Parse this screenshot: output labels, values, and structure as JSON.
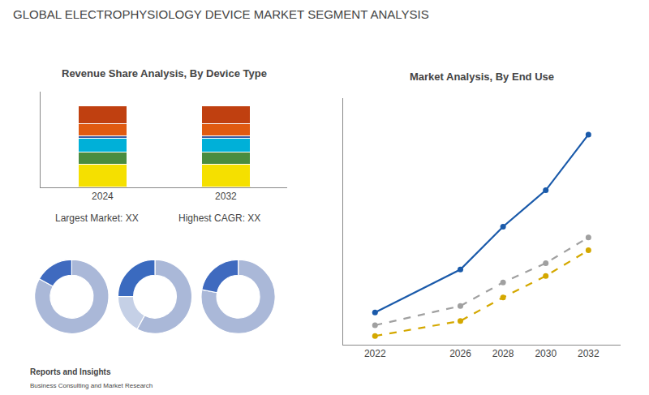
{
  "title": "GLOBAL ELECTROPHYSIOLOGY DEVICE MARKET SEGMENT ANALYSIS",
  "annotations": [
    "Reports and Insights",
    "Business Consulting and Market Research"
  ],
  "chart_data": [
    {
      "type": "bar",
      "title": "Revenue Share Analysis, By Device Type",
      "categories": [
        "2024",
        "2032"
      ],
      "stacked": true,
      "series": [
        {
          "color": "#f5e000",
          "values": [
            0.28,
            0.28
          ]
        },
        {
          "color": "#4a8c3f",
          "values": [
            0.15,
            0.15
          ]
        },
        {
          "color": "#00b0d8",
          "values": [
            0.17,
            0.17
          ]
        },
        {
          "color": "#3a5aa0",
          "values": [
            0.03,
            0.03
          ]
        },
        {
          "color": "#e05a10",
          "values": [
            0.15,
            0.15
          ]
        },
        {
          "color": "#c04010",
          "values": [
            0.22,
            0.22
          ]
        }
      ],
      "ylim": [
        0,
        1.18
      ],
      "yticks": [],
      "grid": false,
      "tick_labels": "x",
      "annotations": [
        "Largest Market: XX",
        "Highest CAGR: XX"
      ]
    },
    {
      "type": "donut",
      "values": [
        0.83,
        0.17
      ],
      "colors": [
        "#aab8d8",
        "#3f6abf"
      ]
    },
    {
      "type": "donut",
      "values": [
        0.58,
        0.25,
        0.17
      ],
      "colors": [
        "#aab8d8",
        "#3a6abf",
        "#c5d0e6"
      ]
    },
    {
      "type": "donut",
      "values": [
        0.78,
        0.22
      ],
      "colors": [
        "#aab8d8",
        "#3f6abf"
      ]
    },
    {
      "type": "line",
      "title": "Market Analysis, By End Use",
      "x": [
        2022,
        2026,
        2028,
        2030,
        2032
      ],
      "xlim": [
        2020.5,
        2033.5
      ],
      "xticks": [
        2022,
        2026,
        2028,
        2030,
        2032
      ],
      "ylim": [
        0,
        11.5
      ],
      "yticks": [],
      "grid": false,
      "tick_labels": "x",
      "series": [
        {
          "color": "#1a5aaa",
          "line_style": "solid",
          "marker": "circle",
          "values": [
            1.5,
            3.5,
            5.5,
            7.2,
            9.8
          ]
        },
        {
          "color": "#a0a0a0",
          "line_style": "dashed",
          "marker": "circle",
          "values": [
            0.9,
            1.8,
            2.9,
            3.8,
            5.0
          ]
        },
        {
          "color": "#d4a800",
          "line_style": "dashed",
          "marker": "circle",
          "values": [
            0.4,
            1.1,
            2.2,
            3.2,
            4.4
          ]
        }
      ]
    }
  ]
}
